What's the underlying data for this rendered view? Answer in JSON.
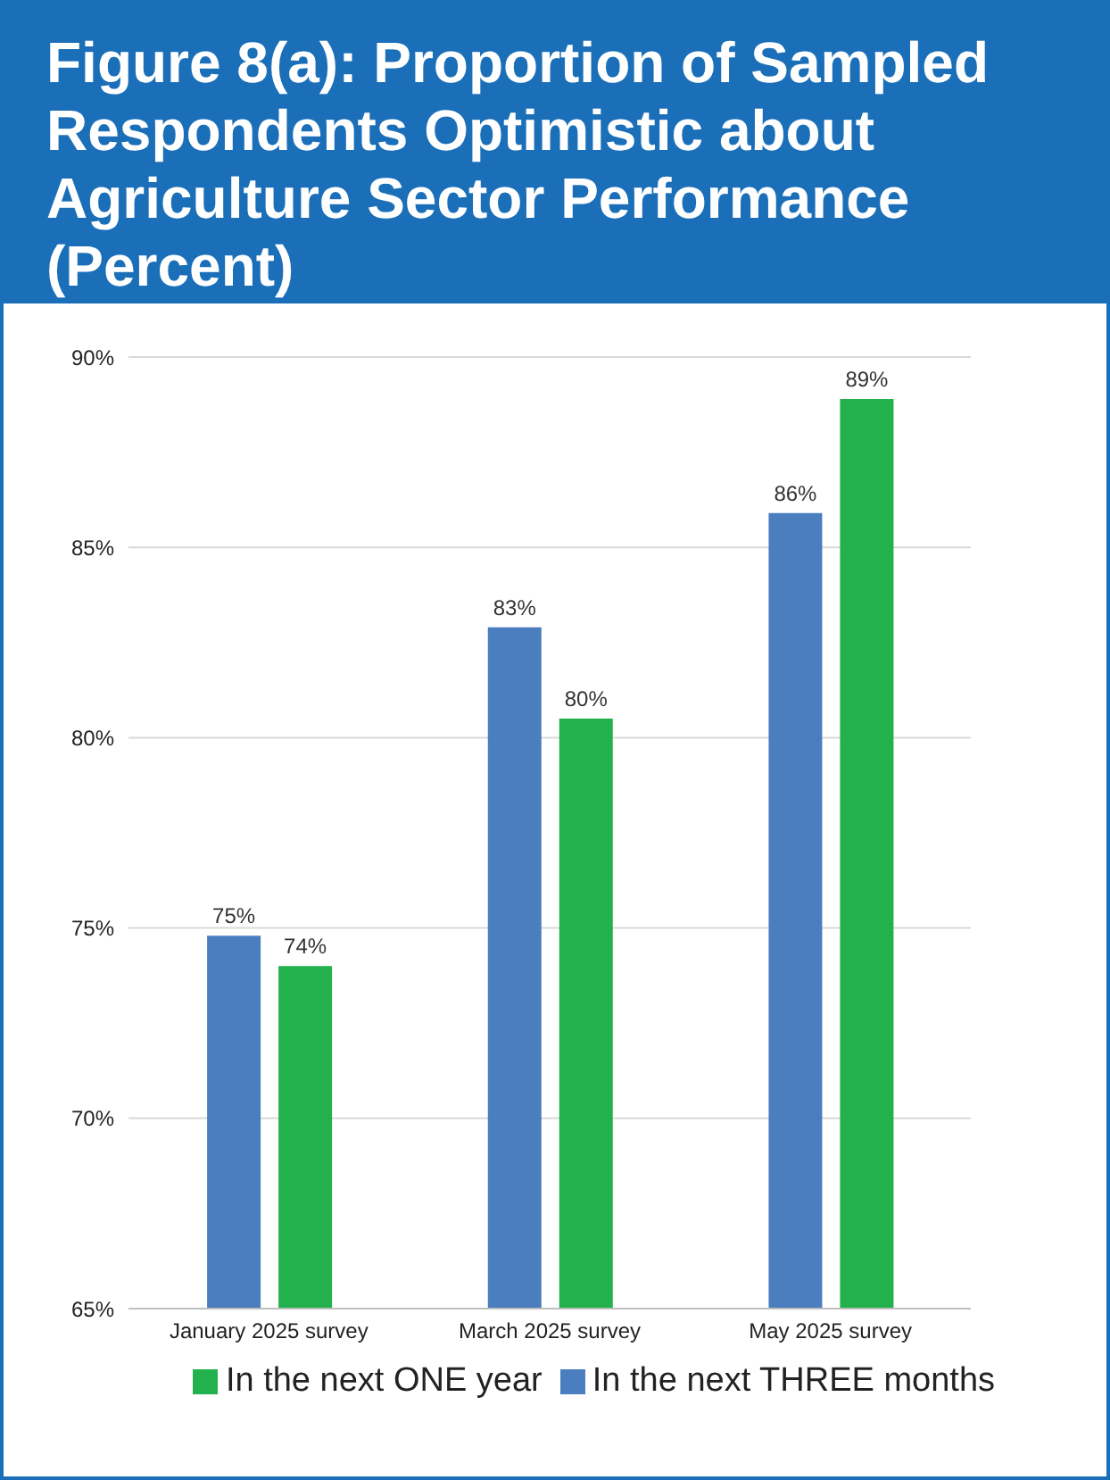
{
  "chart_data": {
    "type": "bar",
    "title": "Figure 8(a): Proportion of Sampled Respondents Optimistic about Agriculture Sector Performance (Percent)",
    "categories": [
      "January 2025 survey",
      "March 2025 survey",
      "May 2025 survey"
    ],
    "series": [
      {
        "name": "In the next THREE months",
        "color": "#4a7ebf",
        "values": [
          74.8,
          82.9,
          85.9
        ],
        "value_labels": [
          "75%",
          "83%",
          "86%"
        ]
      },
      {
        "name": "In the next ONE year",
        "color": "#22b14c",
        "values": [
          74.0,
          80.5,
          88.9
        ],
        "value_labels": [
          "74%",
          "80%",
          "89%"
        ]
      }
    ],
    "ylim": [
      65,
      90
    ],
    "yticks": [
      {
        "value": 65,
        "label": "65%"
      },
      {
        "value": 70,
        "label": "70%"
      },
      {
        "value": 75,
        "label": "75%"
      },
      {
        "value": 80,
        "label": "80%"
      },
      {
        "value": 85,
        "label": "85%"
      },
      {
        "value": 90,
        "label": "90%"
      }
    ],
    "grid": "y",
    "legend": "bottom"
  }
}
